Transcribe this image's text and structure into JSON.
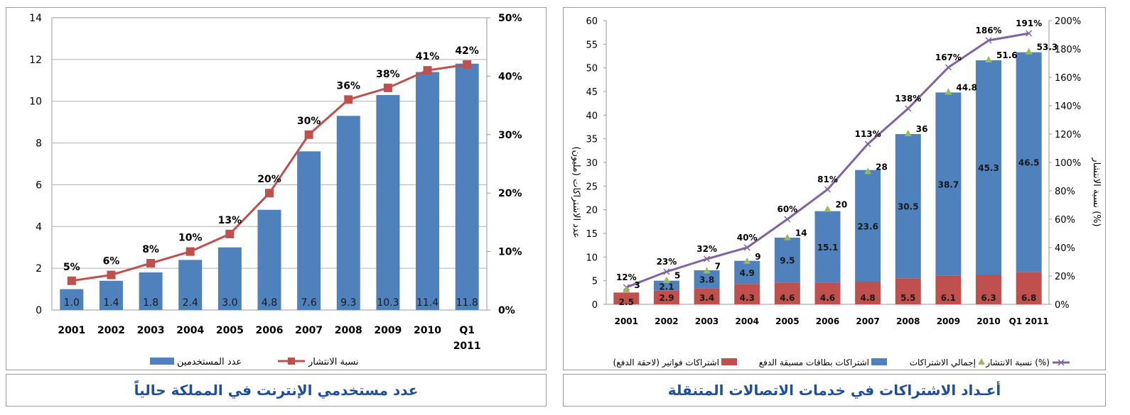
{
  "captions": {
    "left": "عدد مستخدمي الإنترنت في المملكة حالياً",
    "right": "أعـداد الاشتراكات في خدمات الاتصالات المتنقلة"
  },
  "colors": {
    "blue": "#4f81bd",
    "red": "#c0504d",
    "purple": "#8064a2",
    "green": "#9bbb59",
    "caption": "#1f4e9a"
  },
  "chart_data": [
    {
      "type": "bar",
      "categories": [
        "2001",
        "2002",
        "2003",
        "2004",
        "2005",
        "2006",
        "2007",
        "2008",
        "2009",
        "2010",
        "Q1 2011"
      ],
      "series": [
        {
          "name": "عدد المستخدمين",
          "kind": "bar",
          "axis": "left",
          "values": [
            1.0,
            1.4,
            1.8,
            2.4,
            3.0,
            4.8,
            7.6,
            9.3,
            10.3,
            11.4,
            11.8
          ],
          "labels": [
            "1.0",
            "1.4",
            "1.8",
            "2.4",
            "3.0",
            "4.8",
            "7.6",
            "9.3",
            "10.3",
            "11.4",
            "11.8"
          ]
        },
        {
          "name": "نسبة الانتشار",
          "kind": "line",
          "axis": "right",
          "values": [
            5,
            6,
            8,
            10,
            13,
            20,
            30,
            36,
            38,
            41,
            42
          ],
          "labels": [
            "5%",
            "6%",
            "8%",
            "10%",
            "13%",
            "20%",
            "30%",
            "36%",
            "38%",
            "41%",
            "42%"
          ]
        }
      ],
      "left_axis": {
        "range": [
          0,
          14
        ],
        "ticks": [
          "0",
          "2",
          "4",
          "6",
          "8",
          "10",
          "12",
          "14"
        ]
      },
      "right_axis": {
        "range": [
          0,
          50
        ],
        "ticks": [
          "0%",
          "10%",
          "20%",
          "30%",
          "40%",
          "50%"
        ]
      },
      "grid": true,
      "legend_position": "bottom"
    },
    {
      "type": "bar",
      "categories": [
        "2001",
        "2002",
        "2003",
        "2004",
        "2005",
        "2006",
        "2007",
        "2008",
        "2009",
        "2010",
        "Q1 2011"
      ],
      "series": [
        {
          "name": "اشتراكات فواتير (لاحقة الدفع)",
          "kind": "stacked-bar",
          "axis": "left",
          "values": [
            2.5,
            2.9,
            3.4,
            4.3,
            4.6,
            4.6,
            4.8,
            5.5,
            6.1,
            6.3,
            6.8
          ],
          "labels": [
            "2.5",
            "2.9",
            "3.4",
            "4.3",
            "4.6",
            "4.6",
            "4.8",
            "5.5",
            "6.1",
            "6.3",
            "6.8"
          ]
        },
        {
          "name": "اشتراكات بطاقات مسبقة الدفع",
          "kind": "stacked-bar",
          "axis": "left",
          "values": [
            0,
            2.1,
            3.8,
            4.9,
            9.5,
            15.1,
            23.6,
            30.5,
            38.7,
            45.3,
            46.5
          ],
          "labels": [
            "",
            "2.1",
            "3.8",
            "4.9",
            "9.5",
            "15.1",
            "23.6",
            "30.5",
            "38.7",
            "45.3",
            "46.5"
          ]
        },
        {
          "name": "إجمالي الاشتراكات",
          "kind": "marker",
          "axis": "left",
          "values": [
            3,
            5,
            7,
            9,
            14,
            20,
            28,
            36,
            44.8,
            51.6,
            53.3
          ],
          "labels": [
            "3",
            "5",
            "7",
            "9",
            "14",
            "20",
            "28",
            "36",
            "44.8",
            "51.6",
            "53.3"
          ]
        },
        {
          "name": "نسبة الانتشار (%)",
          "kind": "line",
          "axis": "right",
          "values": [
            12,
            23,
            32,
            40,
            60,
            81,
            113,
            138,
            167,
            186,
            191
          ],
          "labels": [
            "12%",
            "23%",
            "32%",
            "40%",
            "60%",
            "81%",
            "113%",
            "138%",
            "167%",
            "186%",
            "191%"
          ]
        }
      ],
      "left_axis": {
        "label": "عدد الاشتراكات (مليون)",
        "range": [
          0,
          60
        ],
        "ticks": [
          "0",
          "5",
          "10",
          "15",
          "20",
          "25",
          "30",
          "35",
          "40",
          "45",
          "50",
          "55",
          "60"
        ]
      },
      "right_axis": {
        "label": "نسبة الانتشار (%)",
        "range": [
          0,
          200
        ],
        "ticks": [
          "0%",
          "20%",
          "40%",
          "60%",
          "80%",
          "100%",
          "120%",
          "140%",
          "160%",
          "180%",
          "200%"
        ]
      },
      "grid": false,
      "legend_position": "bottom"
    }
  ]
}
